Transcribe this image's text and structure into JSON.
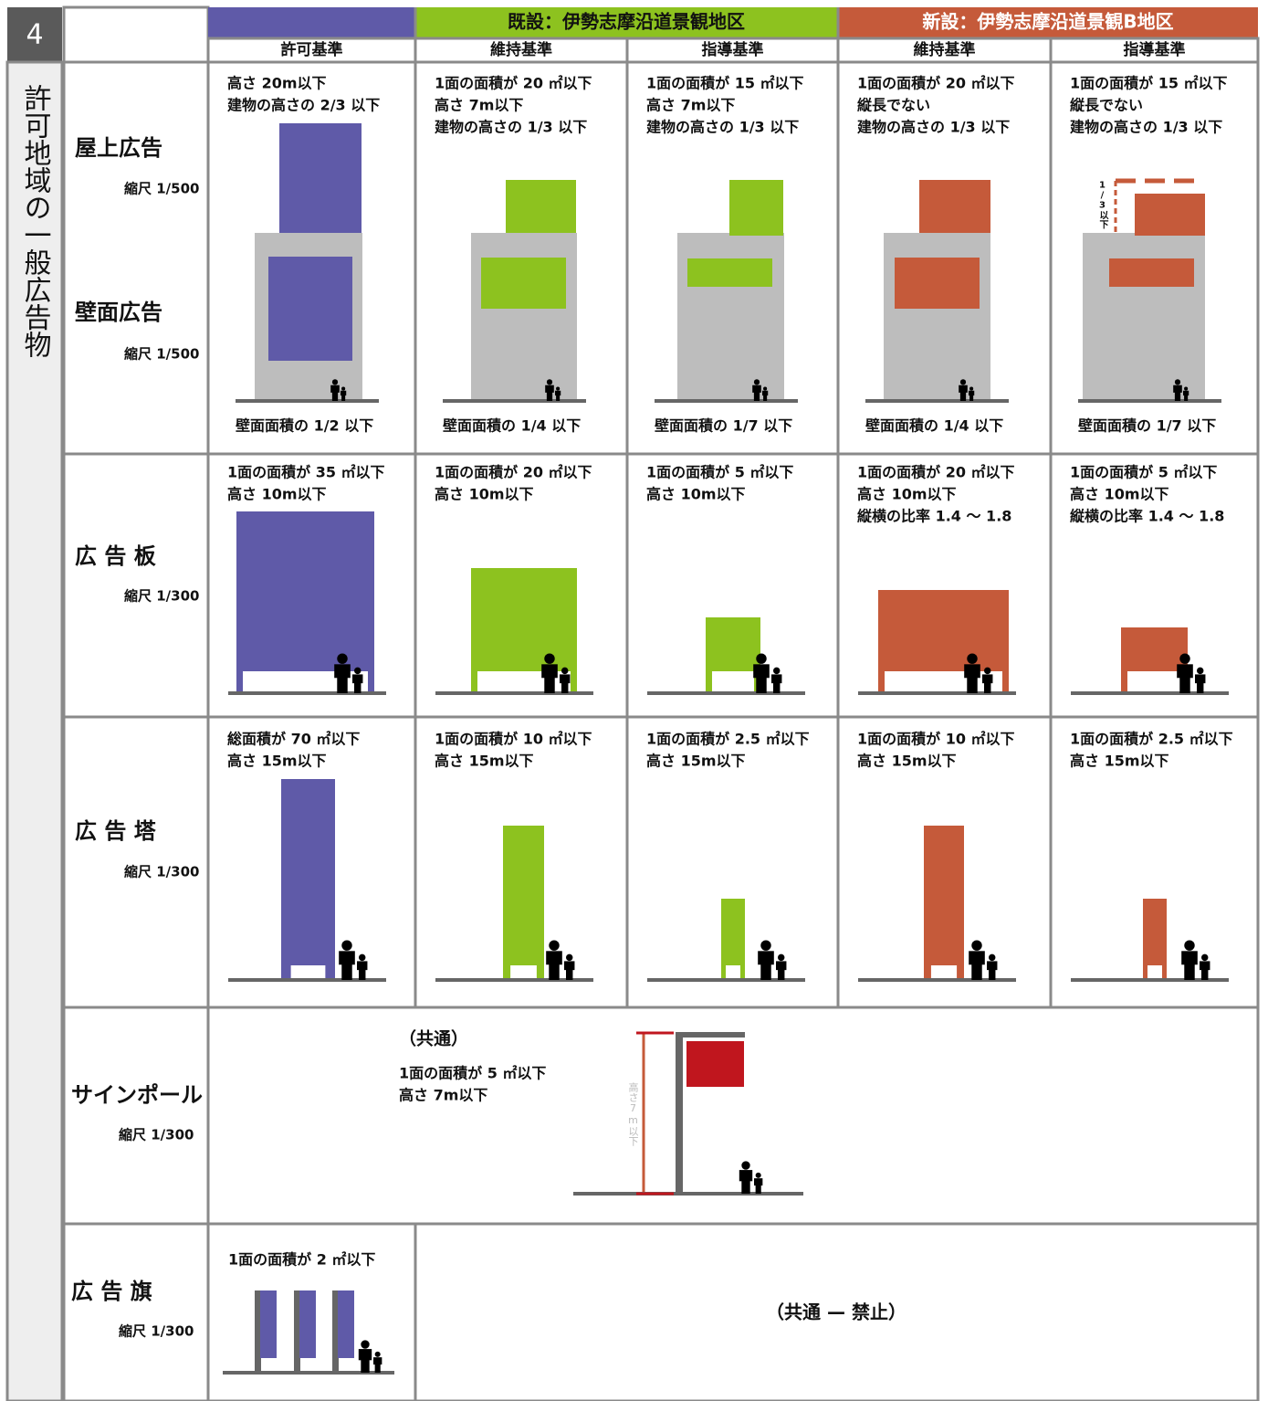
{
  "section_number": "4",
  "side_label": "許可地域の一般広告物",
  "header": {
    "groups": [
      "既設：伊勢志摩沿道景観地区",
      "新設：伊勢志摩沿道景観B地区"
    ],
    "columns": [
      "許可基準",
      "維持基準",
      "指導基準",
      "維持基準",
      "指導基準"
    ]
  },
  "rows": [
    {
      "labels": [
        "屋上広告",
        "壁面広告"
      ],
      "scales": [
        "縮尺 1/500",
        "縮尺 1/500"
      ],
      "cells": [
        {
          "lines": [
            "高さ 20m以下",
            "建物の高さの 2/3 以下"
          ],
          "note": "壁面面積の 1/2 以下"
        },
        {
          "lines": [
            "1面の面積が 20 ㎡以下",
            "高さ 7m以下",
            "建物の高さの 1/3 以下"
          ],
          "note": "壁面面積の 1/4 以下"
        },
        {
          "lines": [
            "1面の面積が 15 ㎡以下",
            "高さ 7m以下",
            "建物の高さの 1/3 以下"
          ],
          "note": "壁面面積の 1/7 以下"
        },
        {
          "lines": [
            "1面の面積が 20 ㎡以下",
            "縦長でない",
            "建物の高さの 1/3 以下"
          ],
          "note": "壁面面積の 1/4 以下"
        },
        {
          "lines": [
            "1面の面積が 15 ㎡以下",
            "縦長でない",
            "建物の高さの 1/3 以下"
          ],
          "note": "壁面面積の 1/7 以下",
          "dimension": "1/3以下"
        }
      ]
    },
    {
      "labels": [
        "広 告 板"
      ],
      "scales": [
        "縮尺 1/300"
      ],
      "cells": [
        {
          "lines": [
            "1面の面積が 35 ㎡以下",
            "高さ 10m以下"
          ]
        },
        {
          "lines": [
            "1面の面積が 20 ㎡以下",
            "高さ 10m以下"
          ]
        },
        {
          "lines": [
            "1面の面積が 5 ㎡以下",
            "高さ 10m以下"
          ]
        },
        {
          "lines": [
            "1面の面積が 20 ㎡以下",
            "高さ 10m以下",
            "縦横の比率 1.4 ～ 1.8"
          ]
        },
        {
          "lines": [
            "1面の面積が 5 ㎡以下",
            "高さ 10m以下",
            "縦横の比率 1.4 ～ 1.8"
          ]
        }
      ]
    },
    {
      "labels": [
        "広 告 塔"
      ],
      "scales": [
        "縮尺 1/300"
      ],
      "cells": [
        {
          "lines": [
            "総面積が 70 ㎡以下",
            "高さ 15m以下"
          ]
        },
        {
          "lines": [
            "1面の面積が 10 ㎡以下",
            "高さ 15m以下"
          ]
        },
        {
          "lines": [
            "1面の面積が 2.5 ㎡以下",
            "高さ 15m以下"
          ]
        },
        {
          "lines": [
            "1面の面積が 10 ㎡以下",
            "高さ 15m以下"
          ]
        },
        {
          "lines": [
            "1面の面積が 2.5 ㎡以下",
            "高さ 15m以下"
          ]
        }
      ]
    },
    {
      "labels": [
        "サインポール"
      ],
      "scales": [
        "縮尺 1/300"
      ],
      "cells": [
        {
          "lines": [
            "（共通）",
            "1面の面積が 5 ㎡以下",
            "高さ 7m以下"
          ],
          "dimension": "高さ7m以下"
        }
      ]
    },
    {
      "labels": [
        "広 告 旗"
      ],
      "scales": [
        "縮尺 1/300"
      ],
      "cells": [
        {
          "lines": [
            "1面の面積が 2 ㎡以下"
          ]
        },
        {
          "lines": [
            "（共通 — 禁止）"
          ]
        }
      ]
    }
  ]
}
